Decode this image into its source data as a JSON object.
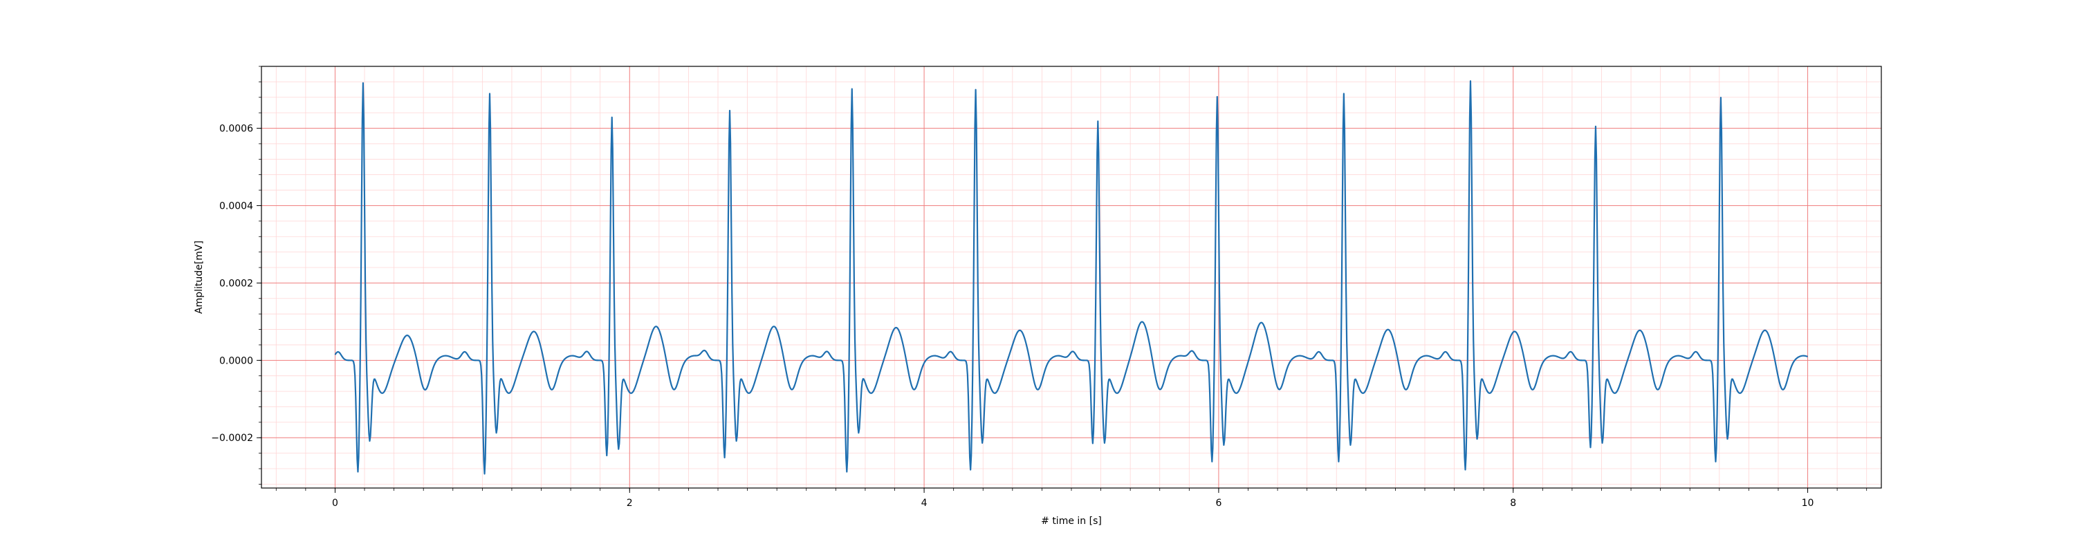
{
  "chart_data": {
    "type": "line",
    "title": "",
    "xlabel": "# time in [s]",
    "ylabel": "Amplitude[mV]",
    "xlim": [
      -0.5,
      10.5
    ],
    "ylim": [
      -0.00033,
      0.00076
    ],
    "x_ticks": [
      0,
      2,
      4,
      6,
      8,
      10
    ],
    "x_tick_labels": [
      "0",
      "2",
      "4",
      "6",
      "8",
      "10"
    ],
    "y_ticks": [
      -0.0002,
      0,
      0.0002,
      0.0004,
      0.0006
    ],
    "y_tick_labels": [
      "−0.0002",
      "0.0000",
      "0.0002",
      "0.0004",
      "0.0006"
    ],
    "grid": {
      "major": true,
      "minor": true,
      "major_color": "#f08080",
      "minor_color": "#ffd6d6",
      "x_minor_step": 0.2,
      "y_minor_step": 4e-05
    },
    "line_color": "#1f6fb0",
    "sample_rate_hz": 200,
    "series": [
      {
        "name": "",
        "beats": [
          {
            "r_time": 0.19,
            "r_peak": 0.000705,
            "q_depth": -0.000275,
            "s_depth": -0.000185,
            "t_peak": 5.5e-05
          },
          {
            "r_time": 1.05,
            "r_peak": 0.000678,
            "q_depth": -0.00028,
            "s_depth": -0.000165,
            "t_peak": 6.5e-05
          },
          {
            "r_time": 1.88,
            "r_peak": 0.000618,
            "q_depth": -0.000235,
            "s_depth": -0.000205,
            "t_peak": 7.8e-05
          },
          {
            "r_time": 2.68,
            "r_peak": 0.000635,
            "q_depth": -0.00024,
            "s_depth": -0.000185,
            "t_peak": 7.8e-05
          },
          {
            "r_time": 3.51,
            "r_peak": 0.00069,
            "q_depth": -0.000275,
            "s_depth": -0.000165,
            "t_peak": 7.5e-05
          },
          {
            "r_time": 4.35,
            "r_peak": 0.000688,
            "q_depth": -0.00027,
            "s_depth": -0.00019,
            "t_peak": 6.8e-05
          },
          {
            "r_time": 5.18,
            "r_peak": 0.000608,
            "q_depth": -0.000205,
            "s_depth": -0.00019,
            "t_peak": 9e-05
          },
          {
            "r_time": 5.99,
            "r_peak": 0.00067,
            "q_depth": -0.00025,
            "s_depth": -0.000195,
            "t_peak": 8.8e-05
          },
          {
            "r_time": 6.85,
            "r_peak": 0.000678,
            "q_depth": -0.00025,
            "s_depth": -0.000195,
            "t_peak": 7e-05
          },
          {
            "r_time": 7.71,
            "r_peak": 0.00071,
            "q_depth": -0.00027,
            "s_depth": -0.00018,
            "t_peak": 6.5e-05
          },
          {
            "r_time": 8.56,
            "r_peak": 0.000595,
            "q_depth": -0.000215,
            "s_depth": -0.00019,
            "t_peak": 6.8e-05
          },
          {
            "r_time": 9.41,
            "r_peak": 0.000668,
            "q_depth": -0.00025,
            "s_depth": -0.00018,
            "t_peak": 6.8e-05
          }
        ]
      }
    ]
  }
}
